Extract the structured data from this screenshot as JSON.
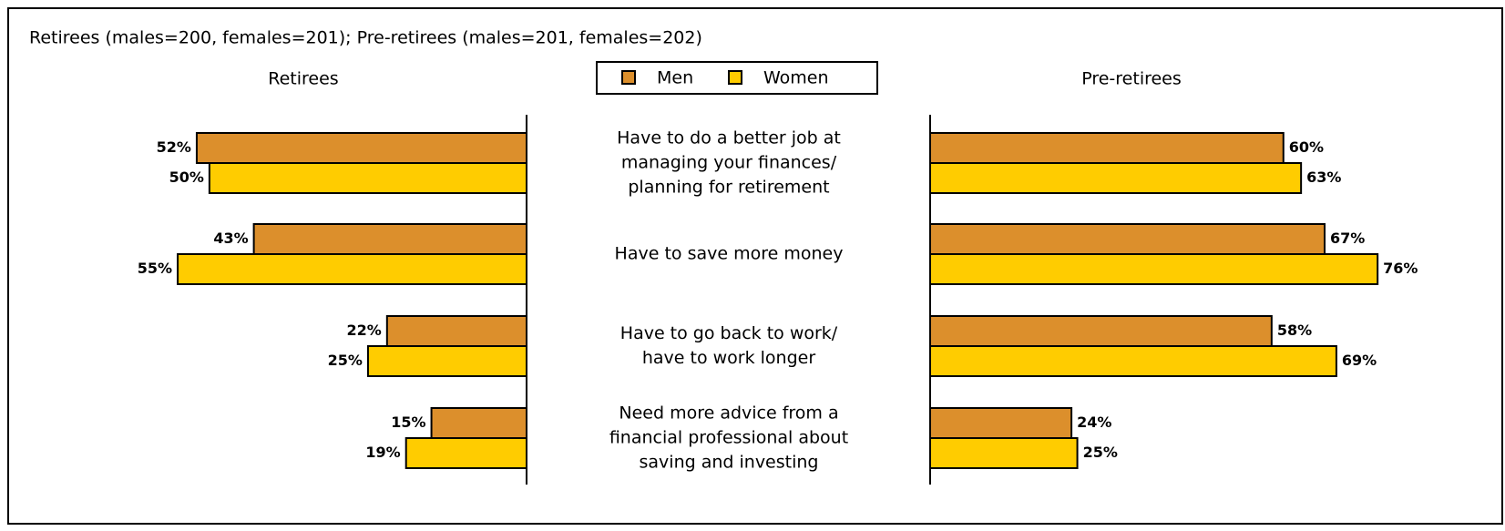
{
  "chart_data": {
    "type": "bar",
    "orientation": "horizontal",
    "subtitle": "Retirees (males=200, females=201); Pre-retirees (males=201, females=202)",
    "legend": [
      {
        "name": "Men",
        "color": "#dc8f2c"
      },
      {
        "name": "Women",
        "color": "#ffcc00"
      }
    ],
    "categories": [
      [
        "Have to do a better job at",
        "managing your finances/",
        "planning for retirement"
      ],
      [
        "Have to save more money"
      ],
      [
        "Have to go back to work/",
        "have to work longer"
      ],
      [
        "Need more advice from a",
        "financial professional about",
        "saving and investing"
      ]
    ],
    "panels": [
      {
        "title": "Retirees",
        "direction": "left",
        "xlim": [
          0,
          80
        ],
        "series": [
          {
            "values": [
              52,
              43,
              22,
              15
            ],
            "value_labels": [
              "52%",
              "43%",
              "22%",
              "15%"
            ]
          },
          {
            "values": [
              50,
              55,
              25,
              19
            ],
            "value_labels": [
              "50%",
              "55%",
              "25%",
              "19%"
            ]
          }
        ]
      },
      {
        "title": "Pre-retirees",
        "direction": "right",
        "xlim": [
          0,
          80
        ],
        "series": [
          {
            "values": [
              60,
              67,
              58,
              24
            ],
            "value_labels": [
              "60%",
              "67%",
              "58%",
              "24%"
            ]
          },
          {
            "values": [
              63,
              76,
              69,
              25
            ],
            "value_labels": [
              "63%",
              "76%",
              "69%",
              "25%"
            ]
          }
        ]
      }
    ]
  }
}
